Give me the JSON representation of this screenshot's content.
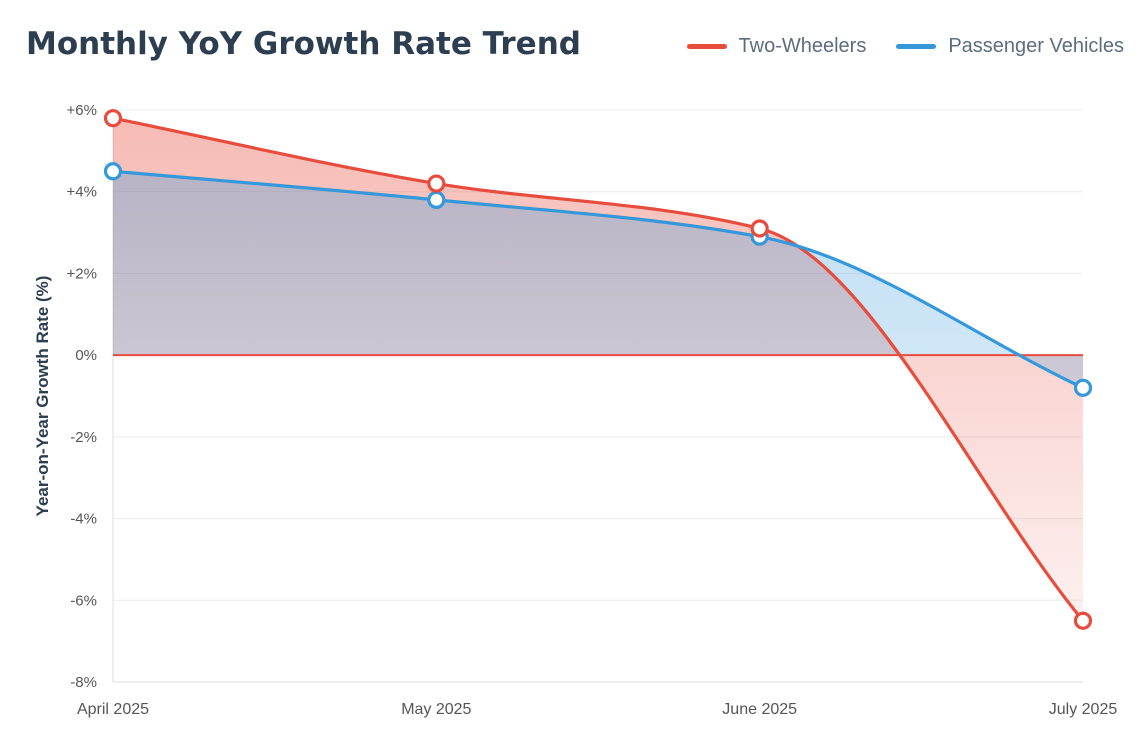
{
  "colors": {
    "two_wheelers": "#e74c3c",
    "passenger_vehicles": "#3498db",
    "title": "#2c3e50",
    "grid": "#ececec",
    "zero_line": "#e74c3c"
  },
  "chart_data": {
    "type": "line",
    "title": "Monthly YoY Growth Rate Trend",
    "ylabel": "Year-on-Year Growth Rate (%)",
    "xlabel": "",
    "categories": [
      "April 2025",
      "May 2025",
      "June 2025",
      "July 2025"
    ],
    "series": [
      {
        "name": "Two-Wheelers",
        "values": [
          5.8,
          4.2,
          3.1,
          -6.5
        ],
        "color": "#e74c3c"
      },
      {
        "name": "Passenger Vehicles",
        "values": [
          4.5,
          3.8,
          2.9,
          -0.8
        ],
        "color": "#3498db"
      }
    ],
    "ylim": [
      -8,
      6
    ],
    "yticks": [
      6,
      4,
      2,
      0,
      -2,
      -4,
      -6,
      -8
    ],
    "ytick_labels": [
      "+6%",
      "+4%",
      "+2%",
      "0%",
      "-2%",
      "-4%",
      "-6%",
      "-8%"
    ],
    "grid": true,
    "legend_position": "top-right",
    "area_fill": true,
    "smooth": true
  }
}
